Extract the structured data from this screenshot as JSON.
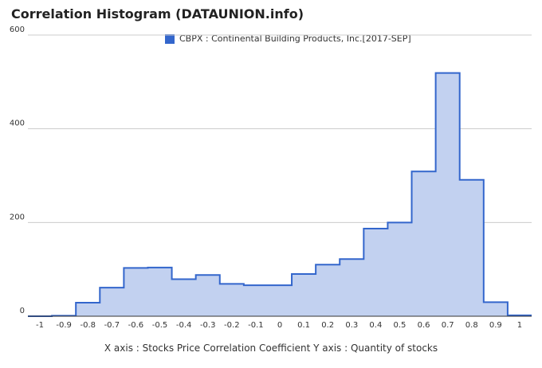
{
  "title": "Correlation Histogram (DATAUNION.info)",
  "footer": "X axis : Stocks Price Correlation Coefficient  Y axis : Quantity of stocks",
  "colors": {
    "line": "#3366cc",
    "fill": "#c2d1f0",
    "grid": "#cccccc"
  },
  "chart_data": {
    "type": "area",
    "title": "Correlation Histogram (DATAUNION.info)",
    "xlabel": "X axis : Stocks Price Correlation Coefficient",
    "ylabel": "Y axis : Quantity of stocks",
    "xlim": [
      -1.05,
      1.05
    ],
    "ylim": [
      0,
      600
    ],
    "x_ticks": [
      "-1",
      "-0.9",
      "-0.8",
      "-0.7",
      "-0.6",
      "-0.5",
      "-0.4",
      "-0.3",
      "-0.2",
      "-0.1",
      "0",
      "0.1",
      "0.2",
      "0.3",
      "0.4",
      "0.5",
      "0.6",
      "0.7",
      "0.8",
      "0.9",
      "1"
    ],
    "y_ticks": [
      0,
      200,
      400,
      600
    ],
    "grid": true,
    "legend_position": "top-center",
    "series": [
      {
        "name": "CBPX : Continental Building Products, Inc.[2017-SEP]",
        "x": [
          -1,
          -0.9,
          -0.8,
          -0.7,
          -0.6,
          -0.5,
          -0.4,
          -0.3,
          -0.2,
          -0.1,
          0,
          0.1,
          0.2,
          0.3,
          0.4,
          0.5,
          0.6,
          0.7,
          0.8,
          0.9,
          1
        ],
        "values": [
          0,
          1,
          29,
          61,
          103,
          104,
          79,
          88,
          69,
          66,
          66,
          90,
          110,
          122,
          187,
          200,
          309,
          519,
          291,
          30,
          2
        ]
      }
    ]
  }
}
